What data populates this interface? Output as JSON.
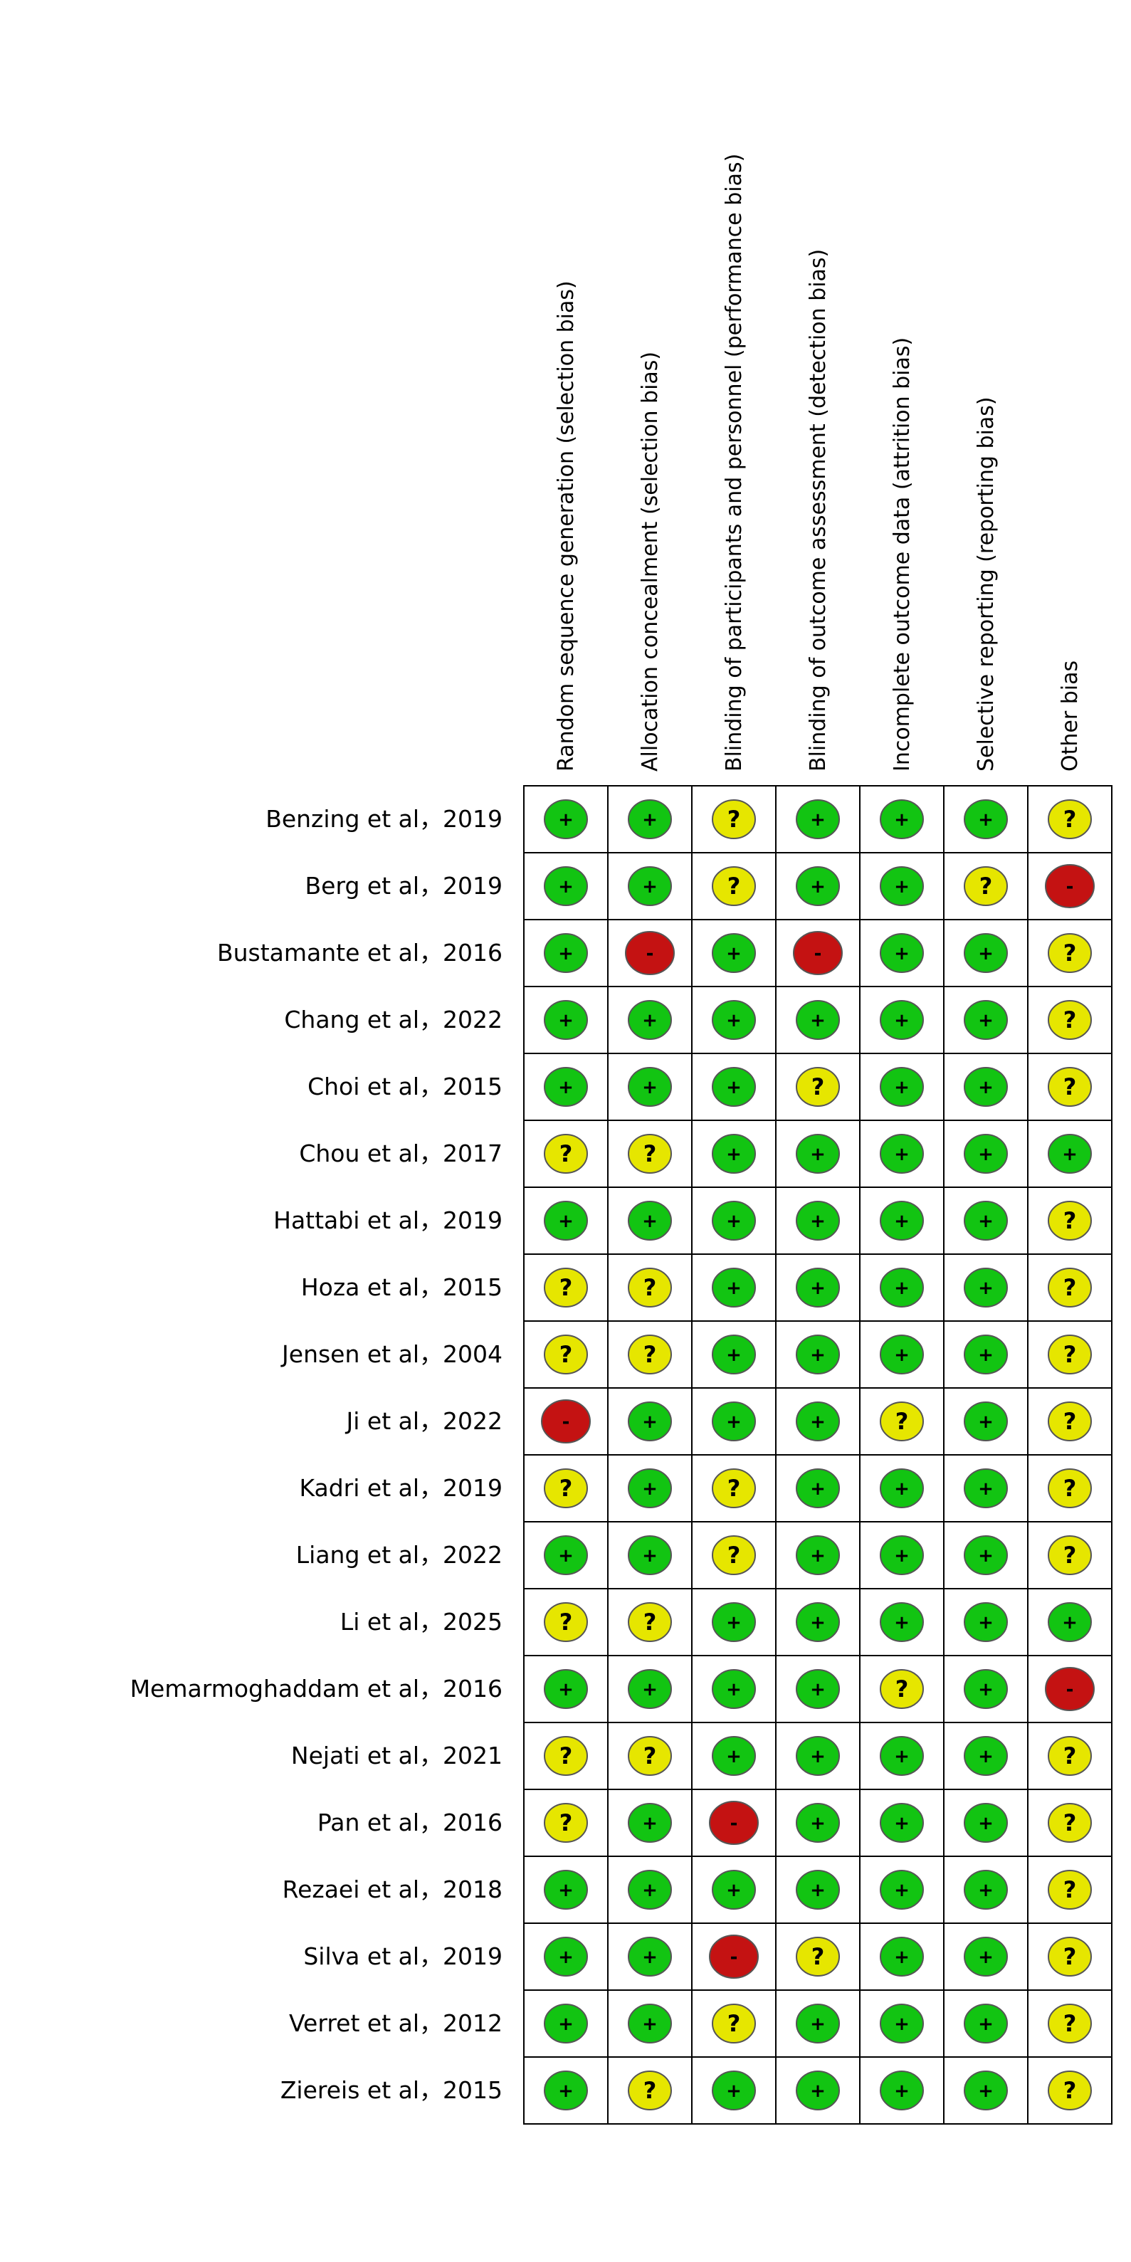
{
  "chart_data": {
    "type": "table",
    "title": "",
    "columns": [
      "Random sequence generation (selection bias)",
      "Allocation concealment (selection bias)",
      "Blinding of participants and personnel (performance bias)",
      "Blinding of outcome assessment (detection bias)",
      "Incomplete outcome data (attrition bias)",
      "Selective reporting (reporting bias)",
      "Other bias"
    ],
    "rows": [
      {
        "study": "Benzing et al，2019",
        "ratings": [
          "+",
          "+",
          "?",
          "+",
          "+",
          "+",
          "?"
        ]
      },
      {
        "study": "Berg et al，2019",
        "ratings": [
          "+",
          "+",
          "?",
          "+",
          "+",
          "?",
          "-"
        ]
      },
      {
        "study": "Bustamante et al，2016",
        "ratings": [
          "+",
          "-",
          "+",
          "-",
          "+",
          "+",
          "?"
        ]
      },
      {
        "study": "Chang et al，2022",
        "ratings": [
          "+",
          "+",
          "+",
          "+",
          "+",
          "+",
          "?"
        ]
      },
      {
        "study": "Choi et al，2015",
        "ratings": [
          "+",
          "+",
          "+",
          "?",
          "+",
          "+",
          "?"
        ]
      },
      {
        "study": "Chou et al，2017",
        "ratings": [
          "?",
          "?",
          "+",
          "+",
          "+",
          "+",
          "+"
        ]
      },
      {
        "study": "Hattabi et al，2019",
        "ratings": [
          "+",
          "+",
          "+",
          "+",
          "+",
          "+",
          "?"
        ]
      },
      {
        "study": "Hoza et al，2015",
        "ratings": [
          "?",
          "?",
          "+",
          "+",
          "+",
          "+",
          "?"
        ]
      },
      {
        "study": "Jensen et al，2004",
        "ratings": [
          "?",
          "?",
          "+",
          "+",
          "+",
          "+",
          "?"
        ]
      },
      {
        "study": "Ji et al，2022",
        "ratings": [
          "-",
          "+",
          "+",
          "+",
          "?",
          "+",
          "?"
        ]
      },
      {
        "study": "Kadri et al，2019",
        "ratings": [
          "?",
          "+",
          "?",
          "+",
          "+",
          "+",
          "?"
        ]
      },
      {
        "study": "Liang et al，2022",
        "ratings": [
          "+",
          "+",
          "?",
          "+",
          "+",
          "+",
          "?"
        ]
      },
      {
        "study": "Li et al，2025",
        "ratings": [
          "?",
          "?",
          "+",
          "+",
          "+",
          "+",
          "+"
        ]
      },
      {
        "study": "Memarmoghaddam et al，2016",
        "ratings": [
          "+",
          "+",
          "+",
          "+",
          "?",
          "+",
          "-"
        ]
      },
      {
        "study": "Nejati et al，2021",
        "ratings": [
          "?",
          "?",
          "+",
          "+",
          "+",
          "+",
          "?"
        ]
      },
      {
        "study": "Pan et al，2016",
        "ratings": [
          "?",
          "+",
          "-",
          "+",
          "+",
          "+",
          "?"
        ]
      },
      {
        "study": "Rezaei et al，2018",
        "ratings": [
          "+",
          "+",
          "+",
          "+",
          "+",
          "+",
          "?"
        ]
      },
      {
        "study": "Silva et al，2019",
        "ratings": [
          "+",
          "+",
          "-",
          "?",
          "+",
          "+",
          "?"
        ]
      },
      {
        "study": "Verret et al，2012",
        "ratings": [
          "+",
          "+",
          "?",
          "+",
          "+",
          "+",
          "?"
        ]
      },
      {
        "study": "Ziereis et al，2015",
        "ratings": [
          "+",
          "?",
          "+",
          "+",
          "+",
          "+",
          "?"
        ]
      }
    ],
    "rating_colors": {
      "+": "#12c412",
      "?": "#e6e600",
      "-": "#c41212"
    },
    "grid": true,
    "legend": "none"
  }
}
